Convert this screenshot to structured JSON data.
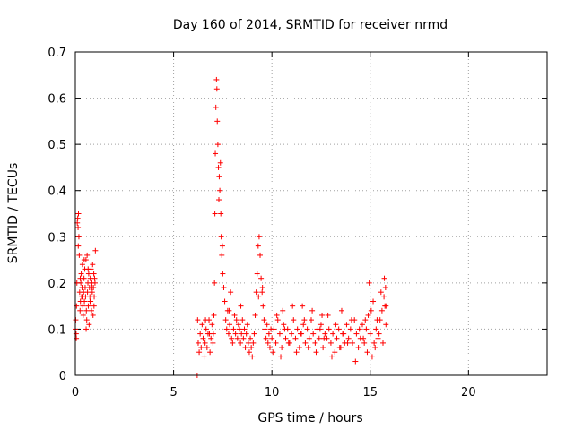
{
  "chart_data": {
    "type": "scatter",
    "title": "Day 160 of 2014, SRMTID for receiver nrmd",
    "xlabel": "GPS time / hours",
    "ylabel": "SRMTID / TECUs",
    "xlim": [
      0,
      24
    ],
    "ylim": [
      0,
      0.7
    ],
    "xticks": [
      0,
      5,
      10,
      15,
      20
    ],
    "yticks": [
      0,
      0.1,
      0.2,
      0.3,
      0.4,
      0.5,
      0.6,
      0.7
    ],
    "grid": true,
    "marker": "+",
    "marker_color": "#ff0000",
    "series": [
      {
        "name": "SRMTID",
        "x": [
          0.0,
          0.02,
          0.04,
          0.06,
          0.08,
          0.1,
          0.12,
          0.14,
          0.16,
          0.18,
          0.2,
          0.22,
          0.24,
          0.26,
          0.28,
          0.3,
          0.32,
          0.34,
          0.36,
          0.38,
          0.4,
          0.42,
          0.44,
          0.46,
          0.48,
          0.5,
          0.52,
          0.54,
          0.56,
          0.58,
          0.6,
          0.62,
          0.64,
          0.66,
          0.68,
          0.7,
          0.72,
          0.74,
          0.76,
          0.78,
          0.8,
          0.82,
          0.84,
          0.86,
          0.88,
          0.9,
          0.92,
          0.94,
          0.96,
          0.98,
          1.0,
          1.02,
          0.05,
          0.15,
          0.25,
          0.35,
          0.45,
          0.55,
          0.65,
          0.75,
          0.85,
          0.95,
          6.2,
          6.22,
          6.25,
          6.3,
          6.35,
          6.4,
          6.45,
          6.5,
          6.55,
          6.6,
          6.65,
          6.7,
          6.75,
          6.8,
          6.85,
          6.9,
          6.95,
          7.0,
          7.02,
          7.05,
          7.08,
          7.1,
          7.12,
          7.15,
          7.18,
          7.2,
          7.22,
          7.25,
          7.28,
          7.3,
          7.32,
          7.35,
          7.38,
          7.4,
          7.42,
          7.45,
          7.48,
          7.5,
          7.55,
          7.6,
          7.65,
          7.7,
          7.75,
          7.8,
          7.85,
          7.9,
          7.95,
          8.0,
          8.05,
          8.1,
          8.15,
          8.2,
          8.25,
          8.3,
          8.35,
          8.4,
          8.45,
          8.5,
          8.55,
          8.6,
          8.65,
          8.7,
          8.75,
          8.8,
          8.85,
          8.9,
          8.95,
          9.0,
          9.05,
          9.1,
          9.15,
          9.2,
          9.25,
          9.3,
          9.35,
          9.4,
          9.45,
          9.5,
          9.55,
          9.6,
          9.65,
          9.7,
          9.75,
          9.8,
          9.85,
          9.9,
          9.95,
          10.0,
          10.1,
          10.2,
          10.3,
          10.4,
          10.5,
          10.6,
          10.7,
          10.8,
          10.9,
          11.0,
          11.1,
          11.2,
          11.3,
          11.4,
          11.5,
          11.6,
          11.7,
          11.8,
          11.9,
          12.0,
          12.1,
          12.2,
          12.3,
          12.4,
          12.5,
          12.6,
          12.7,
          12.8,
          12.9,
          13.0,
          13.1,
          13.2,
          13.3,
          13.4,
          13.5,
          13.6,
          13.7,
          13.8,
          13.9,
          14.0,
          14.1,
          14.2,
          14.3,
          14.4,
          14.5,
          14.6,
          14.7,
          14.8,
          14.9,
          15.0,
          15.1,
          15.2,
          15.3,
          15.4,
          15.5,
          15.6,
          15.7,
          15.8,
          10.05,
          10.25,
          10.45,
          10.65,
          10.85,
          11.05,
          11.25,
          11.45,
          11.65,
          11.85,
          12.05,
          12.25,
          12.45,
          12.65,
          12.85,
          13.05,
          13.25,
          13.45,
          13.65,
          13.85,
          14.05,
          14.25,
          14.45,
          14.65,
          14.85,
          15.05,
          15.25,
          15.45,
          15.65,
          15.75,
          14.95,
          15.15,
          15.35,
          15.55,
          15.72,
          15.78,
          15.8,
          14.75,
          13.55,
          12.55,
          11.55,
          10.55,
          9.52,
          9.32,
          8.42,
          7.82,
          6.62,
          6.82
        ],
        "y": [
          0.1,
          0.12,
          0.09,
          0.15,
          0.2,
          0.33,
          0.34,
          0.32,
          0.35,
          0.3,
          0.26,
          0.18,
          0.14,
          0.16,
          0.2,
          0.22,
          0.17,
          0.19,
          0.24,
          0.15,
          0.13,
          0.18,
          0.21,
          0.16,
          0.23,
          0.19,
          0.17,
          0.25,
          0.14,
          0.12,
          0.26,
          0.18,
          0.2,
          0.15,
          0.22,
          0.11,
          0.19,
          0.17,
          0.21,
          0.16,
          0.23,
          0.14,
          0.2,
          0.18,
          0.24,
          0.13,
          0.19,
          0.22,
          0.17,
          0.21,
          0.2,
          0.27,
          0.08,
          0.28,
          0.21,
          0.17,
          0.25,
          0.1,
          0.23,
          0.16,
          0.19,
          0.15,
          0.0,
          0.12,
          0.07,
          0.05,
          0.09,
          0.06,
          0.11,
          0.08,
          0.04,
          0.07,
          0.1,
          0.06,
          0.09,
          0.12,
          0.05,
          0.08,
          0.11,
          0.07,
          0.09,
          0.13,
          0.2,
          0.35,
          0.48,
          0.58,
          0.64,
          0.62,
          0.55,
          0.5,
          0.45,
          0.38,
          0.43,
          0.4,
          0.46,
          0.35,
          0.3,
          0.26,
          0.28,
          0.22,
          0.19,
          0.16,
          0.12,
          0.1,
          0.14,
          0.09,
          0.11,
          0.18,
          0.08,
          0.07,
          0.1,
          0.13,
          0.09,
          0.12,
          0.08,
          0.11,
          0.1,
          0.07,
          0.09,
          0.12,
          0.08,
          0.1,
          0.06,
          0.09,
          0.11,
          0.07,
          0.05,
          0.08,
          0.06,
          0.04,
          0.07,
          0.09,
          0.13,
          0.18,
          0.22,
          0.28,
          0.3,
          0.26,
          0.21,
          0.18,
          0.15,
          0.12,
          0.1,
          0.08,
          0.11,
          0.07,
          0.09,
          0.06,
          0.1,
          0.08,
          0.1,
          0.07,
          0.12,
          0.09,
          0.06,
          0.11,
          0.08,
          0.1,
          0.07,
          0.09,
          0.12,
          0.08,
          0.1,
          0.06,
          0.09,
          0.11,
          0.07,
          0.1,
          0.08,
          0.12,
          0.09,
          0.07,
          0.1,
          0.08,
          0.11,
          0.06,
          0.09,
          0.08,
          0.1,
          0.07,
          0.09,
          0.05,
          0.08,
          0.1,
          0.06,
          0.09,
          0.07,
          0.11,
          0.08,
          0.1,
          0.07,
          0.12,
          0.09,
          0.06,
          0.08,
          0.11,
          0.07,
          0.1,
          0.13,
          0.09,
          0.04,
          0.07,
          0.1,
          0.08,
          0.12,
          0.14,
          0.17,
          0.11,
          0.05,
          0.13,
          0.04,
          0.1,
          0.07,
          0.15,
          0.05,
          0.09,
          0.12,
          0.06,
          0.14,
          0.05,
          0.1,
          0.08,
          0.13,
          0.04,
          0.11,
          0.06,
          0.09,
          0.07,
          0.12,
          0.03,
          0.1,
          0.08,
          0.05,
          0.14,
          0.06,
          0.09,
          0.07,
          0.15,
          0.2,
          0.16,
          0.12,
          0.18,
          0.21,
          0.19,
          0.15,
          0.12,
          0.14,
          0.13,
          0.15,
          0.14,
          0.19,
          0.17,
          0.15,
          0.14,
          0.12,
          0.09
        ]
      }
    ]
  }
}
